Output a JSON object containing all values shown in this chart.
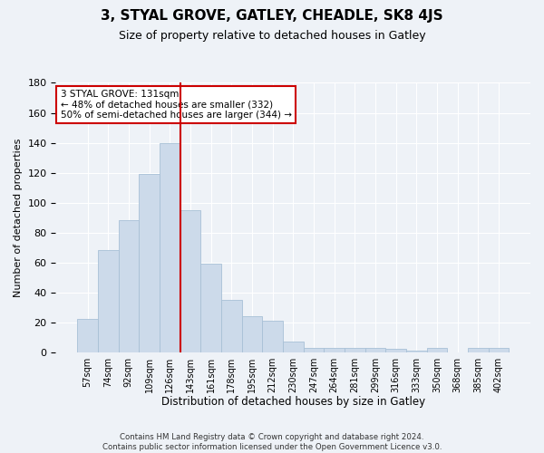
{
  "title": "3, STYAL GROVE, GATLEY, CHEADLE, SK8 4JS",
  "subtitle": "Size of property relative to detached houses in Gatley",
  "xlabel": "Distribution of detached houses by size in Gatley",
  "ylabel": "Number of detached properties",
  "categories": [
    "57sqm",
    "74sqm",
    "92sqm",
    "109sqm",
    "126sqm",
    "143sqm",
    "161sqm",
    "178sqm",
    "195sqm",
    "212sqm",
    "230sqm",
    "247sqm",
    "264sqm",
    "281sqm",
    "299sqm",
    "316sqm",
    "333sqm",
    "350sqm",
    "368sqm",
    "385sqm",
    "402sqm"
  ],
  "values": [
    22,
    68,
    88,
    119,
    140,
    95,
    59,
    35,
    24,
    21,
    7,
    3,
    3,
    3,
    3,
    2,
    1,
    3,
    0,
    3,
    3
  ],
  "bar_color": "#ccdaea",
  "bar_edge_color": "#a8c0d6",
  "background_color": "#eef2f7",
  "grid_color": "#ffffff",
  "red_line_index": 4.5,
  "annotation_text": "3 STYAL GROVE: 131sqm\n← 48% of detached houses are smaller (332)\n50% of semi-detached houses are larger (344) →",
  "annotation_box_color": "#ffffff",
  "annotation_box_edge": "#cc0000",
  "footnote_line1": "Contains HM Land Registry data © Crown copyright and database right 2024.",
  "footnote_line2": "Contains public sector information licensed under the Open Government Licence v3.0.",
  "ylim": [
    0,
    180
  ],
  "yticks": [
    0,
    20,
    40,
    60,
    80,
    100,
    120,
    140,
    160,
    180
  ]
}
